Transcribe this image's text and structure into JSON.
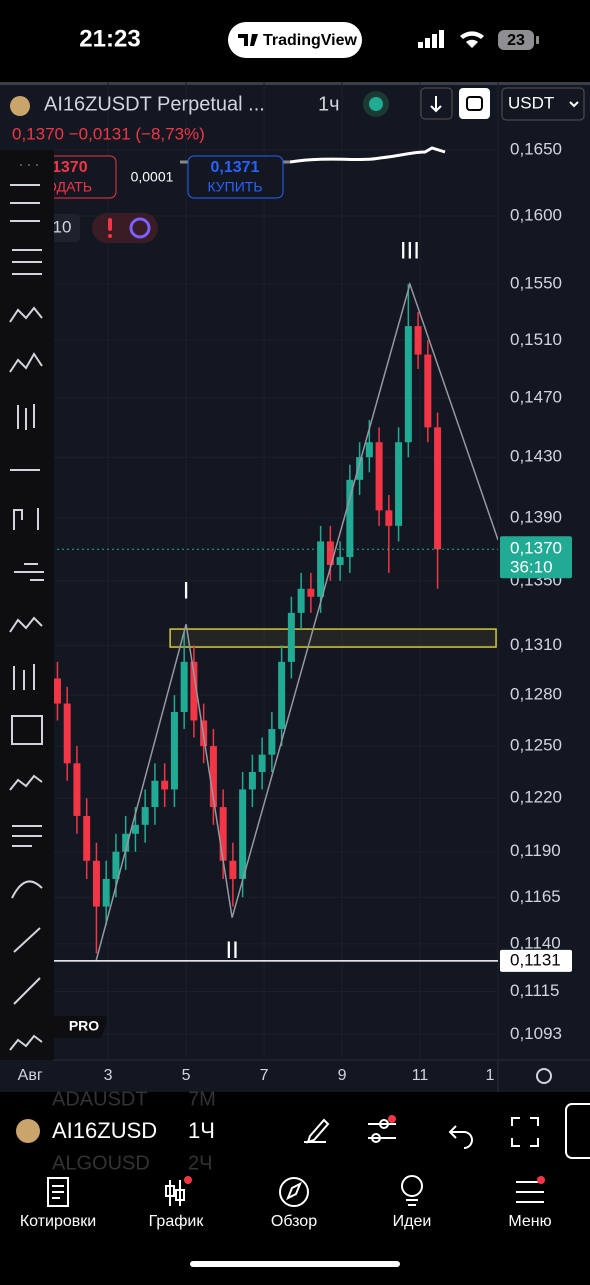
{
  "status_bar": {
    "time": "21:23",
    "app": "TradingView",
    "battery": "23"
  },
  "header": {
    "symbol": "AI16ZUSDT Perpetual ...",
    "interval": "1ч",
    "price_change": "0,1370 −0,0131 (−8,73%)",
    "currency": "USDT"
  },
  "trade_panel": {
    "sell_price": "1370",
    "sell_label": "ОДАТЬ",
    "spread": "0,0001",
    "buy_price": "0,1371",
    "buy_label": "КУПИТЬ",
    "quantity": "10"
  },
  "badge": "PRO",
  "chart_data": {
    "type": "candlestick",
    "log_scale": true,
    "grid": true,
    "up_color": "#22ab94",
    "down_color": "#f23645",
    "x": [
      1.7,
      1.95,
      2.2,
      2.45,
      2.7,
      2.95,
      3.2,
      3.45,
      3.7,
      3.95,
      4.2,
      4.45,
      4.7,
      4.95,
      5.2,
      5.45,
      5.7,
      5.95,
      6.2,
      6.45,
      6.7,
      6.95,
      7.2,
      7.45,
      7.7,
      7.95,
      8.2,
      8.45,
      8.7,
      8.95,
      9.2,
      9.45,
      9.7,
      9.95,
      10.2,
      10.45,
      10.7,
      10.95,
      11.2,
      11.45
    ],
    "open": [
      0.129,
      0.1275,
      0.124,
      0.121,
      0.1185,
      0.116,
      0.1175,
      0.119,
      0.12,
      0.1205,
      0.1215,
      0.123,
      0.1225,
      0.127,
      0.13,
      0.1265,
      0.125,
      0.1215,
      0.1185,
      0.1175,
      0.1225,
      0.1235,
      0.1245,
      0.126,
      0.13,
      0.133,
      0.1345,
      0.134,
      0.1375,
      0.136,
      0.1365,
      0.1415,
      0.143,
      0.144,
      0.1395,
      0.1385,
      0.144,
      0.152,
      0.15,
      0.145
    ],
    "high": [
      0.13,
      0.1285,
      0.125,
      0.122,
      0.1195,
      0.1185,
      0.12,
      0.121,
      0.1215,
      0.1225,
      0.124,
      0.124,
      0.128,
      0.1318,
      0.131,
      0.1275,
      0.126,
      0.1225,
      0.1195,
      0.1235,
      0.1245,
      0.1255,
      0.127,
      0.131,
      0.134,
      0.1355,
      0.1355,
      0.1385,
      0.1385,
      0.1375,
      0.1425,
      0.144,
      0.1455,
      0.145,
      0.1405,
      0.145,
      0.155,
      0.153,
      0.151,
      0.146
    ],
    "low": [
      0.1265,
      0.123,
      0.12,
      0.1175,
      0.1135,
      0.115,
      0.1165,
      0.118,
      0.119,
      0.1195,
      0.1205,
      0.1215,
      0.1215,
      0.126,
      0.1255,
      0.124,
      0.1205,
      0.1175,
      0.116,
      0.1165,
      0.1215,
      0.1225,
      0.1235,
      0.125,
      0.129,
      0.132,
      0.133,
      0.133,
      0.135,
      0.135,
      0.1355,
      0.1405,
      0.142,
      0.1385,
      0.1355,
      0.1375,
      0.143,
      0.149,
      0.144,
      0.1345
    ],
    "close": [
      0.1275,
      0.124,
      0.121,
      0.1185,
      0.116,
      0.1175,
      0.119,
      0.12,
      0.1205,
      0.1215,
      0.123,
      0.1225,
      0.127,
      0.13,
      0.1265,
      0.125,
      0.1215,
      0.1185,
      0.1175,
      0.1225,
      0.1235,
      0.1245,
      0.126,
      0.13,
      0.133,
      0.1345,
      0.134,
      0.1375,
      0.136,
      0.1365,
      0.1415,
      0.143,
      0.144,
      0.1395,
      0.1385,
      0.144,
      0.152,
      0.15,
      0.145,
      0.137
    ],
    "xlim": [
      1.56,
      13.0
    ],
    "xticks": [
      {
        "value": 1,
        "label": "Авг"
      },
      3,
      5,
      7,
      9,
      11,
      {
        "value": 13,
        "label": "1"
      }
    ],
    "ylim": [
      0.108,
      0.1703
    ],
    "yticks": [
      {
        "value": 0.165,
        "label": "0,1650"
      },
      {
        "value": 0.16,
        "label": "0,1600"
      },
      {
        "value": 0.155,
        "label": "0,1550"
      },
      {
        "value": 0.151,
        "label": "0,1510"
      },
      {
        "value": 0.147,
        "label": "0,1470"
      },
      {
        "value": 0.143,
        "label": "0,1430"
      },
      {
        "value": 0.139,
        "label": "0,1390"
      },
      {
        "value": 0.135,
        "label": "0,1350"
      },
      {
        "value": 0.131,
        "label": "0,1310"
      },
      {
        "value": 0.128,
        "label": "0,1280"
      },
      {
        "value": 0.125,
        "label": "0,1250"
      },
      {
        "value": 0.122,
        "label": "0,1220"
      },
      {
        "value": 0.119,
        "label": "0,1190"
      },
      {
        "value": 0.1165,
        "label": "0,1165"
      },
      {
        "value": 0.114,
        "label": "0,1140"
      },
      {
        "value": 0.1115,
        "label": "0,1115"
      },
      {
        "value": 0.1093,
        "label": "0,1093"
      }
    ],
    "last_price": {
      "value": 0.137,
      "label": "0,1370",
      "countdown": "36:10",
      "color": "#22ab94"
    },
    "price_line": {
      "value": 0.1131,
      "label": "0,1131"
    },
    "wave": {
      "x": [
        2.69,
        5.0,
        6.18,
        10.74,
        13.0
      ],
      "y": [
        0.1131,
        0.1323,
        0.1154,
        0.155,
        0.1376
      ],
      "labels": [
        null,
        "I",
        "II",
        "III",
        null
      ],
      "color": "#9598a1"
    },
    "zone": {
      "x": [
        4.59,
        12.95
      ],
      "y": [
        0.1309,
        0.132
      ],
      "color": "#d4c93a"
    }
  },
  "bottom_bar": {
    "symbol": "AI16ZUSD",
    "interval": "1Ч",
    "behind": [
      [
        "ADAUSDT",
        "7M"
      ],
      [
        "ALGOUSD",
        "2Ч"
      ]
    ]
  },
  "nav": [
    "Котировки",
    "График",
    "Обзор",
    "Идеи",
    "Меню"
  ]
}
